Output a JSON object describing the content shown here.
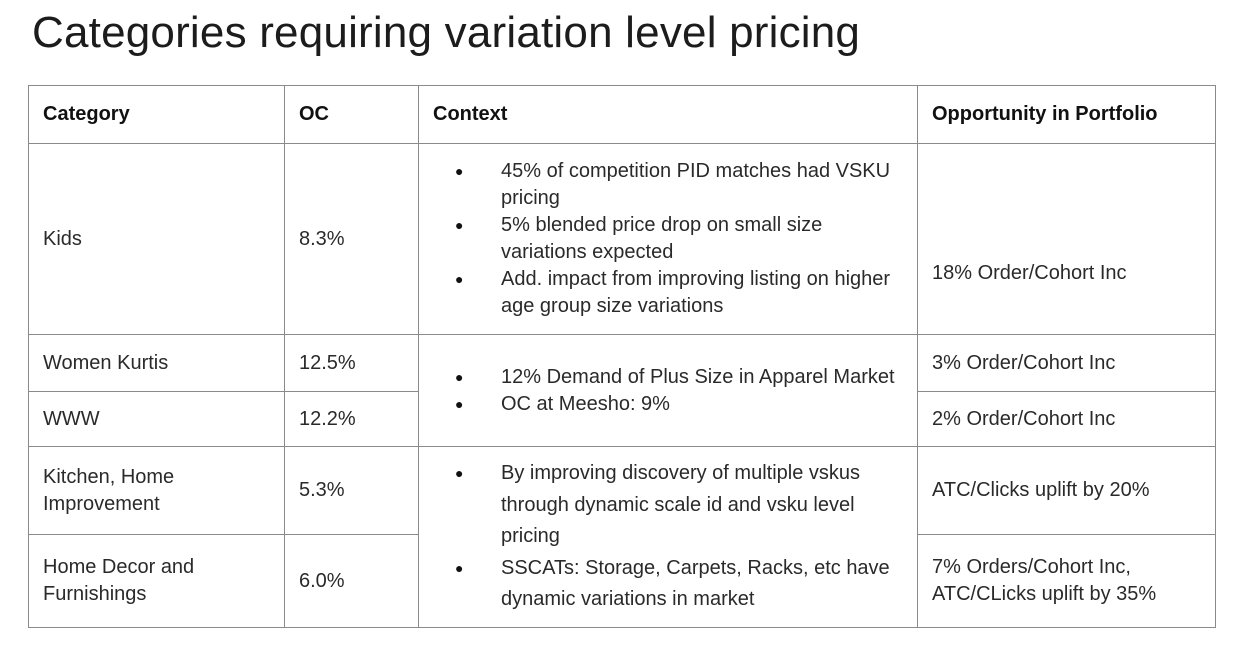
{
  "title": "Categories requiring variation level pricing",
  "headers": {
    "category": "Category",
    "oc": "OC",
    "context": "Context",
    "opportunity": "Opportunity in Portfolio"
  },
  "rows": [
    {
      "category": "Kids",
      "oc": "8.3%",
      "context": [
        "45% of competition PID matches had VSKU pricing",
        "5% blended price drop on small size variations expected",
        "Add. impact from improving listing on higher age group  size variations"
      ],
      "opportunity": "18% Order/Cohort Inc"
    },
    {
      "category": "Women Kurtis",
      "oc": "12.5%",
      "opportunity": "3% Order/Cohort Inc"
    },
    {
      "category": "WWW",
      "oc": "12.2%",
      "opportunity": "2% Order/Cohort Inc"
    },
    {
      "category": "Kitchen, Home Improvement",
      "oc": "5.3%",
      "opportunity": "ATC/Clicks uplift by 20%"
    },
    {
      "category": "Home Decor and Furnishings",
      "oc": "6.0%",
      "opportunity_lines": [
        "7% Orders/Cohort Inc,",
        "ATC/CLicks uplift by 35%"
      ]
    }
  ],
  "context_apparel": [
    "12% Demand of Plus Size in Apparel Market",
    "OC at Meesho: 9%"
  ],
  "context_home": [
    "By improving discovery of multiple vskus through dynamic scale id and vsku level pricing",
    "SSCATs: Storage, Carpets, Racks, etc have dynamic variations in market"
  ]
}
